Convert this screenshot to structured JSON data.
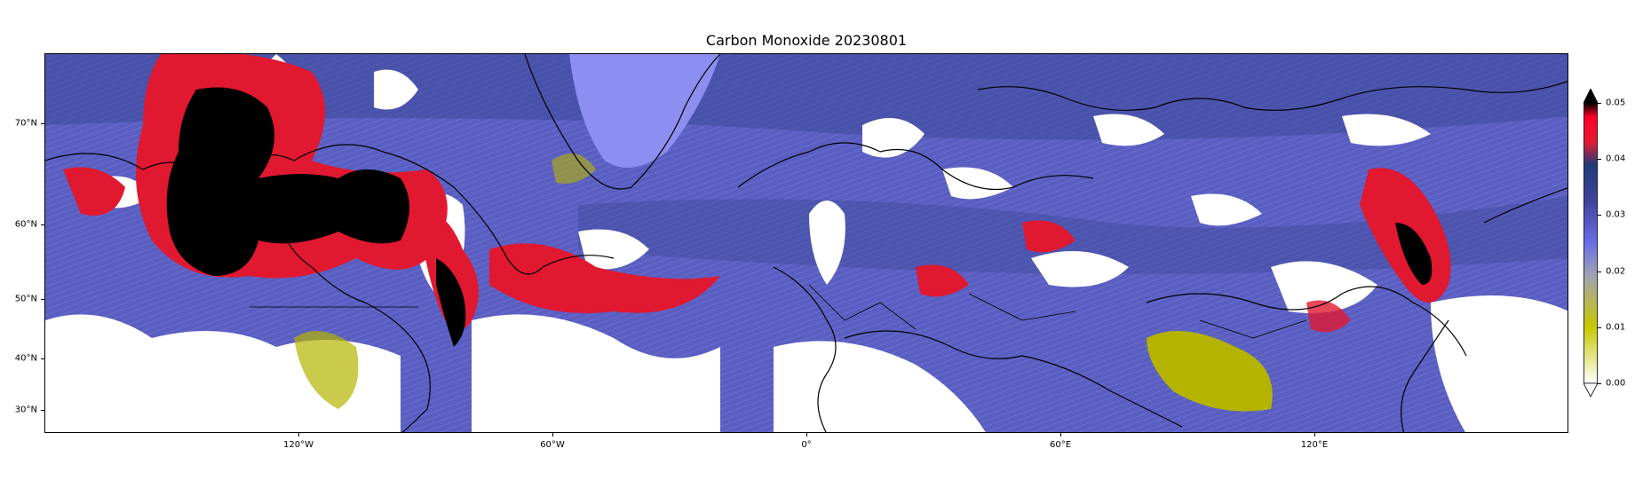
{
  "title": "Carbon Monoxide 20230801",
  "x_ticks": [
    "120°W",
    "60°W",
    "0°",
    "60°E",
    "120°E"
  ],
  "y_ticks": [
    "70°N",
    "60°N",
    "50°N",
    "40°N",
    "30°N"
  ],
  "colorbar": {
    "ticks": [
      "0.00",
      "0.01",
      "0.02",
      "0.03",
      "0.04",
      "0.05"
    ],
    "range": [
      0.0,
      0.05
    ],
    "extend": "both",
    "colors": [
      "#ffffff",
      "#c8c800",
      "#a4a4b0",
      "#6a6ee8",
      "#3e449c",
      "#203a7a",
      "#e21c34",
      "#ff0028",
      "#000000"
    ]
  },
  "map_colors": {
    "background": "#5e62c4",
    "cloud_gaps": "#ffffff",
    "high_co": "#e01830",
    "very_high_co": "#000000",
    "low_co": "#b4b400",
    "light_co": "#8c8ef0",
    "coast": "#000000"
  }
}
